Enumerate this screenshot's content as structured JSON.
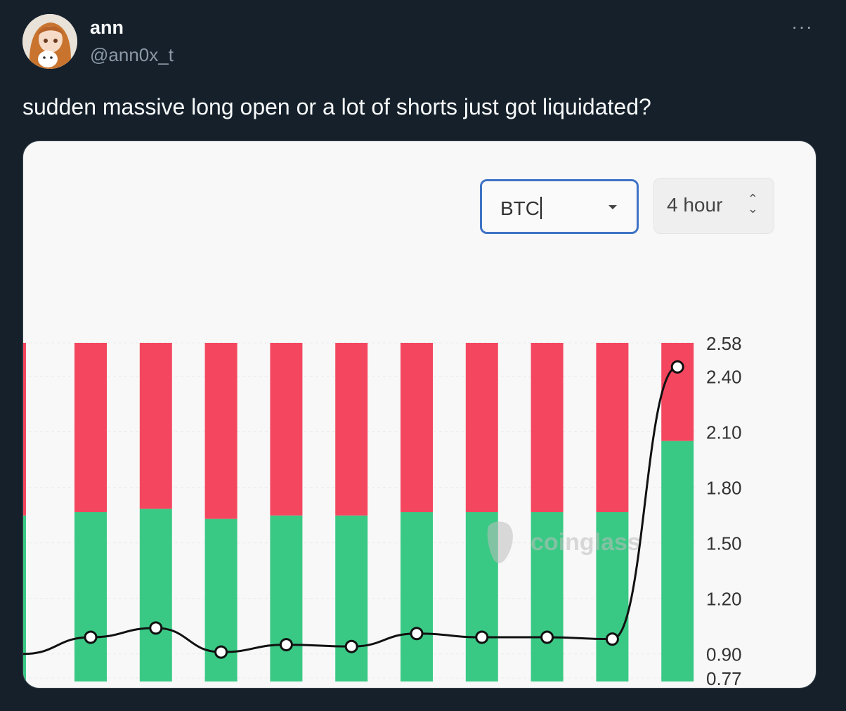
{
  "tweet": {
    "author_name": "ann",
    "author_handle": "@ann0x_t",
    "text": "sudden massive long open or a lot of shorts just got liquidated?",
    "more_label": "···"
  },
  "screenshot": {
    "coin_select": {
      "value": "BTC"
    },
    "interval_select": {
      "value": "4 hour"
    },
    "watermark": "coinglass",
    "colors": {
      "long": "#3ac985",
      "short": "#f4475f",
      "line": "#111111"
    }
  },
  "chart_data": {
    "type": "bar",
    "y_ticks": [
      "2.58",
      "2.40",
      "2.10",
      "1.80",
      "1.50",
      "1.20",
      "0.90",
      "0.77"
    ],
    "ylim": [
      0.77,
      2.58
    ],
    "series": [
      {
        "name": "",
        "kind": "stacked-bar-long-share",
        "values": [
          0.49,
          0.5,
          0.51,
          0.48,
          0.49,
          0.49,
          0.5,
          0.5,
          0.5,
          0.5,
          0.71
        ]
      },
      {
        "name": "",
        "kind": "line-ratio",
        "values": [
          0.9,
          0.99,
          1.04,
          0.91,
          0.95,
          0.94,
          1.01,
          0.99,
          0.99,
          0.98,
          2.45
        ]
      }
    ]
  }
}
